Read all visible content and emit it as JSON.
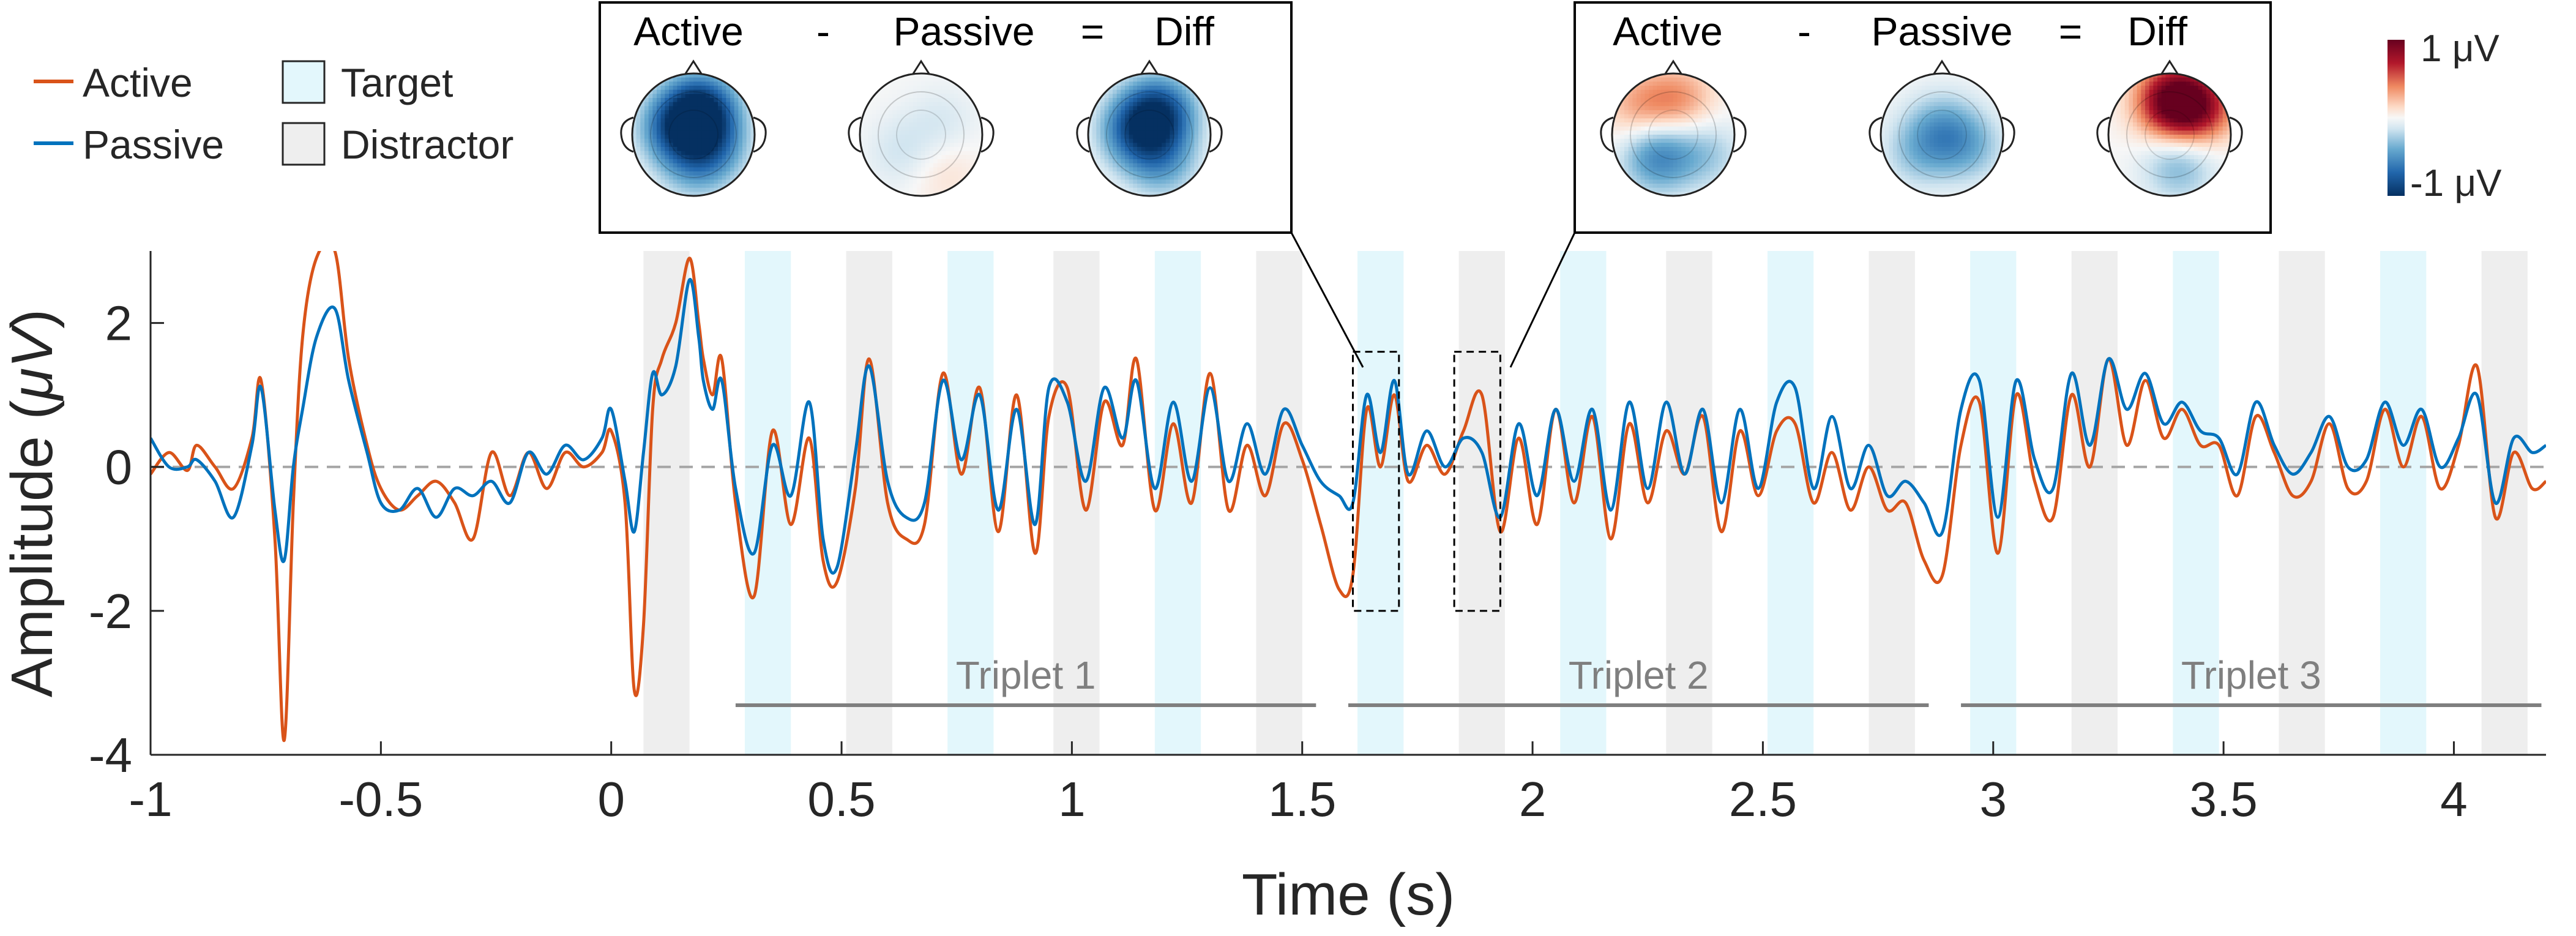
{
  "chart_data": {
    "type": "line",
    "xlabel": "Time (s)",
    "ylabel_prefix": "Amplitude (",
    "ylabel_unit": "μV",
    "ylabel_suffix": ")",
    "xlim": [
      -1,
      4.2
    ],
    "ylim": [
      -4,
      3
    ],
    "xticks": [
      -1,
      -0.5,
      0,
      0.5,
      1,
      1.5,
      2,
      2.5,
      3,
      3.5,
      4
    ],
    "xtick_labels": [
      "-1",
      "-0.5",
      "0",
      "0.5",
      "1",
      "1.5",
      "2",
      "2.5",
      "3",
      "3.5",
      "4"
    ],
    "yticks": [
      -4,
      -2,
      0,
      2
    ],
    "ytick_labels": [
      "-4",
      "-2",
      "0",
      "2"
    ],
    "zero_line": "dashed",
    "legend": {
      "lines": [
        {
          "label": "Active",
          "color": "#D95319"
        },
        {
          "label": "Passive",
          "color": "#0072BD"
        }
      ],
      "patches": [
        {
          "label": "Target",
          "color": "#E3F7FC"
        },
        {
          "label": "Distractor",
          "color": "#EEEEEE"
        }
      ]
    },
    "stimulus_bands": [
      {
        "kind": "distractor",
        "start": 0.07,
        "end": 0.17
      },
      {
        "kind": "target",
        "start": 0.29,
        "end": 0.39
      },
      {
        "kind": "distractor",
        "start": 0.51,
        "end": 0.61
      },
      {
        "kind": "target",
        "start": 0.73,
        "end": 0.83
      },
      {
        "kind": "distractor",
        "start": 0.96,
        "end": 1.06
      },
      {
        "kind": "target",
        "start": 1.18,
        "end": 1.28
      },
      {
        "kind": "distractor",
        "start": 1.4,
        "end": 1.5
      },
      {
        "kind": "target",
        "start": 1.62,
        "end": 1.72
      },
      {
        "kind": "distractor",
        "start": 1.84,
        "end": 1.94
      },
      {
        "kind": "target",
        "start": 2.06,
        "end": 2.16
      },
      {
        "kind": "distractor",
        "start": 2.29,
        "end": 2.39
      },
      {
        "kind": "target",
        "start": 2.51,
        "end": 2.61
      },
      {
        "kind": "distractor",
        "start": 2.73,
        "end": 2.83
      },
      {
        "kind": "target",
        "start": 2.95,
        "end": 3.05
      },
      {
        "kind": "distractor",
        "start": 3.17,
        "end": 3.27
      },
      {
        "kind": "target",
        "start": 3.39,
        "end": 3.49
      },
      {
        "kind": "distractor",
        "start": 3.62,
        "end": 3.72
      },
      {
        "kind": "target",
        "start": 3.84,
        "end": 3.94
      },
      {
        "kind": "distractor",
        "start": 4.06,
        "end": 4.16
      }
    ],
    "triplets": [
      {
        "label": "Triplet 1",
        "start": 0.27,
        "end": 1.53
      },
      {
        "label": "Triplet 2",
        "start": 1.6,
        "end": 2.86
      },
      {
        "label": "Triplet 3",
        "start": 2.93,
        "end": 4.19
      }
    ],
    "highlight_windows": [
      {
        "start": 1.61,
        "end": 1.71,
        "ymin": -2,
        "ymax": 1.6
      },
      {
        "start": 1.83,
        "end": 1.93,
        "ymin": -2,
        "ymax": 1.6
      }
    ],
    "series": [
      {
        "name": "Active",
        "color": "#D95319",
        "x": [
          -1.0,
          -0.96,
          -0.92,
          -0.9,
          -0.86,
          -0.82,
          -0.78,
          -0.76,
          -0.73,
          -0.71,
          -0.69,
          -0.67,
          -0.64,
          -0.6,
          -0.57,
          -0.53,
          -0.5,
          -0.46,
          -0.42,
          -0.38,
          -0.34,
          -0.3,
          -0.26,
          -0.22,
          -0.18,
          -0.14,
          -0.1,
          -0.06,
          -0.02,
          0.0,
          0.03,
          0.05,
          0.07,
          0.09,
          0.11,
          0.14,
          0.17,
          0.19,
          0.2,
          0.22,
          0.24,
          0.27,
          0.31,
          0.35,
          0.39,
          0.43,
          0.46,
          0.49,
          0.53,
          0.56,
          0.6,
          0.64,
          0.68,
          0.72,
          0.76,
          0.8,
          0.84,
          0.88,
          0.92,
          0.95,
          0.99,
          1.03,
          1.07,
          1.11,
          1.14,
          1.18,
          1.22,
          1.26,
          1.3,
          1.34,
          1.38,
          1.42,
          1.46,
          1.5,
          1.54,
          1.58,
          1.61,
          1.64,
          1.67,
          1.7,
          1.73,
          1.77,
          1.81,
          1.85,
          1.89,
          1.93,
          1.97,
          2.01,
          2.05,
          2.09,
          2.13,
          2.17,
          2.21,
          2.25,
          2.29,
          2.33,
          2.37,
          2.41,
          2.45,
          2.49,
          2.53,
          2.57,
          2.61,
          2.65,
          2.69,
          2.73,
          2.77,
          2.81,
          2.85,
          2.89,
          2.93,
          2.97,
          3.01,
          3.05,
          3.09,
          3.13,
          3.17,
          3.21,
          3.25,
          3.29,
          3.33,
          3.37,
          3.41,
          3.45,
          3.49,
          3.53,
          3.57,
          3.61,
          3.65,
          3.69,
          3.73,
          3.77,
          3.81,
          3.85,
          3.89,
          3.93,
          3.97,
          4.01,
          4.05,
          4.09,
          4.13,
          4.17,
          4.2
        ],
        "y": [
          -0.1,
          0.2,
          -0.05,
          0.3,
          0.0,
          -0.3,
          0.4,
          1.2,
          -1.0,
          -3.8,
          -0.5,
          1.8,
          2.9,
          3.0,
          1.5,
          0.3,
          -0.3,
          -0.6,
          -0.4,
          -0.2,
          -0.5,
          -1.0,
          0.2,
          -0.4,
          0.2,
          -0.3,
          0.2,
          0.0,
          0.2,
          0.5,
          -0.5,
          -3.1,
          -2.2,
          0.8,
          1.5,
          2.0,
          2.9,
          2.0,
          1.5,
          1.0,
          1.5,
          -0.5,
          -1.8,
          0.5,
          -0.8,
          0.4,
          -1.3,
          -1.6,
          -0.3,
          1.5,
          -0.5,
          -1.0,
          -0.8,
          1.3,
          -0.1,
          1.1,
          -0.9,
          1.0,
          -1.2,
          0.7,
          1.1,
          -0.6,
          0.9,
          0.3,
          1.5,
          -0.6,
          0.6,
          -0.5,
          1.3,
          -0.6,
          0.3,
          -0.4,
          0.6,
          0.1,
          -0.8,
          -1.7,
          -1.5,
          0.8,
          0.0,
          1.0,
          -0.2,
          0.3,
          -0.1,
          0.5,
          1.0,
          -0.9,
          0.4,
          -0.8,
          0.8,
          -0.5,
          0.7,
          -1.0,
          0.6,
          -0.5,
          0.5,
          -0.1,
          0.7,
          -0.9,
          0.5,
          -0.4,
          0.5,
          0.6,
          -0.5,
          0.2,
          -0.6,
          0.0,
          -0.6,
          -0.5,
          -1.3,
          -1.5,
          0.3,
          0.9,
          -1.2,
          1.0,
          -0.2,
          -0.7,
          1.0,
          0.0,
          1.5,
          0.3,
          1.2,
          0.4,
          0.8,
          0.3,
          0.3,
          -0.4,
          0.7,
          0.2,
          -0.4,
          -0.2,
          0.6,
          -0.3,
          -0.2,
          0.8,
          0.0,
          0.7,
          -0.3,
          0.3,
          1.4,
          -0.7,
          0.2,
          -0.3,
          -0.2
        ]
      },
      {
        "name": "Passive",
        "color": "#0072BD",
        "x": [
          -1.0,
          -0.96,
          -0.92,
          -0.9,
          -0.86,
          -0.82,
          -0.78,
          -0.76,
          -0.73,
          -0.71,
          -0.69,
          -0.67,
          -0.64,
          -0.6,
          -0.57,
          -0.53,
          -0.5,
          -0.46,
          -0.42,
          -0.38,
          -0.34,
          -0.3,
          -0.26,
          -0.22,
          -0.18,
          -0.14,
          -0.1,
          -0.06,
          -0.02,
          0.0,
          0.03,
          0.05,
          0.07,
          0.09,
          0.11,
          0.14,
          0.17,
          0.19,
          0.2,
          0.22,
          0.24,
          0.27,
          0.31,
          0.35,
          0.39,
          0.43,
          0.46,
          0.49,
          0.53,
          0.56,
          0.6,
          0.64,
          0.68,
          0.72,
          0.76,
          0.8,
          0.84,
          0.88,
          0.92,
          0.95,
          0.99,
          1.03,
          1.07,
          1.11,
          1.14,
          1.18,
          1.22,
          1.26,
          1.3,
          1.34,
          1.38,
          1.42,
          1.46,
          1.5,
          1.54,
          1.58,
          1.61,
          1.64,
          1.67,
          1.7,
          1.73,
          1.77,
          1.81,
          1.85,
          1.89,
          1.93,
          1.97,
          2.01,
          2.05,
          2.09,
          2.13,
          2.17,
          2.21,
          2.25,
          2.29,
          2.33,
          2.37,
          2.41,
          2.45,
          2.49,
          2.53,
          2.57,
          2.61,
          2.65,
          2.69,
          2.73,
          2.77,
          2.81,
          2.85,
          2.89,
          2.93,
          2.97,
          3.01,
          3.05,
          3.09,
          3.13,
          3.17,
          3.21,
          3.25,
          3.29,
          3.33,
          3.37,
          3.41,
          3.45,
          3.49,
          3.53,
          3.57,
          3.61,
          3.65,
          3.69,
          3.73,
          3.77,
          3.81,
          3.85,
          3.89,
          3.93,
          3.97,
          4.01,
          4.05,
          4.09,
          4.13,
          4.17,
          4.2
        ],
        "y": [
          0.4,
          0.0,
          0.0,
          0.1,
          -0.2,
          -0.7,
          0.3,
          1.1,
          -0.6,
          -1.3,
          0.0,
          0.8,
          1.8,
          2.2,
          1.2,
          0.2,
          -0.5,
          -0.6,
          -0.3,
          -0.7,
          -0.3,
          -0.4,
          -0.2,
          -0.5,
          0.2,
          -0.1,
          0.3,
          0.1,
          0.4,
          0.8,
          -0.2,
          -0.9,
          0.2,
          1.3,
          1.0,
          1.4,
          2.6,
          1.8,
          1.2,
          0.8,
          1.2,
          -0.3,
          -1.2,
          0.3,
          -0.4,
          0.9,
          -1.0,
          -1.4,
          0.2,
          1.4,
          -0.2,
          -0.7,
          -0.5,
          1.2,
          0.1,
          1.0,
          -0.6,
          0.8,
          -0.8,
          1.1,
          0.9,
          -0.2,
          1.1,
          0.4,
          1.2,
          -0.3,
          0.9,
          -0.2,
          1.1,
          -0.2,
          0.6,
          -0.1,
          0.8,
          0.3,
          -0.2,
          -0.4,
          -0.5,
          1.0,
          0.2,
          1.2,
          -0.1,
          0.5,
          0.0,
          0.4,
          0.2,
          -0.7,
          0.6,
          -0.4,
          0.8,
          -0.2,
          0.8,
          -0.6,
          0.9,
          -0.3,
          0.9,
          -0.1,
          0.8,
          -0.5,
          0.8,
          -0.3,
          0.9,
          1.1,
          -0.3,
          0.7,
          -0.3,
          0.3,
          -0.4,
          -0.2,
          -0.5,
          -0.9,
          0.8,
          1.2,
          -0.7,
          1.2,
          0.1,
          -0.3,
          1.3,
          0.3,
          1.5,
          0.8,
          1.3,
          0.6,
          0.9,
          0.5,
          0.4,
          -0.1,
          0.9,
          0.3,
          -0.1,
          0.2,
          0.7,
          0.0,
          0.1,
          0.9,
          0.3,
          0.8,
          0.0,
          0.4,
          1.0,
          -0.5,
          0.4,
          0.2,
          0.3
        ]
      }
    ],
    "colorbar": {
      "max_label": "1 μV",
      "min_label": "-1 μV",
      "colormap": "RdBu"
    },
    "topo_panels": [
      {
        "titles": [
          "Active",
          "-",
          "Passive",
          "=",
          "Diff"
        ],
        "maps": [
          {
            "name": "Active",
            "blobs": [
              {
                "x": 0.12,
                "y": -0.4,
                "v": -0.95
              },
              {
                "x": -0.3,
                "y": -0.1,
                "v": -0.6
              },
              {
                "x": 0.3,
                "y": 0.2,
                "v": -0.45
              },
              {
                "x": 0.0,
                "y": 0.55,
                "v": -0.25
              }
            ]
          },
          {
            "name": "Passive",
            "blobs": [
              {
                "x": -0.3,
                "y": 0.3,
                "v": -0.15
              },
              {
                "x": 0.35,
                "y": -0.2,
                "v": -0.12
              },
              {
                "x": 0.35,
                "y": 0.6,
                "v": 0.12
              }
            ]
          },
          {
            "name": "Diff",
            "blobs": [
              {
                "x": 0.15,
                "y": -0.35,
                "v": -0.85
              },
              {
                "x": -0.25,
                "y": -0.05,
                "v": -0.55
              },
              {
                "x": 0.2,
                "y": 0.45,
                "v": -0.4
              }
            ]
          }
        ]
      },
      {
        "titles": [
          "Active",
          "-",
          "Passive",
          "=",
          "Diff"
        ],
        "maps": [
          {
            "name": "Active",
            "blobs": [
              {
                "x": 0.1,
                "y": -0.55,
                "v": 0.35
              },
              {
                "x": -0.55,
                "y": -0.45,
                "v": 0.3
              },
              {
                "x": -0.25,
                "y": 0.35,
                "v": -0.55
              },
              {
                "x": 0.55,
                "y": 0.3,
                "v": -0.25
              }
            ]
          },
          {
            "name": "Passive",
            "blobs": [
              {
                "x": 0.0,
                "y": -0.1,
                "v": -0.35
              },
              {
                "x": -0.4,
                "y": 0.3,
                "v": -0.25
              },
              {
                "x": 0.45,
                "y": 0.2,
                "v": -0.3
              }
            ]
          },
          {
            "name": "Diff",
            "blobs": [
              {
                "x": 0.05,
                "y": -0.55,
                "v": 0.95
              },
              {
                "x": 0.5,
                "y": -0.45,
                "v": 0.6
              },
              {
                "x": -0.4,
                "y": 0.05,
                "v": 0.0
              },
              {
                "x": 0.15,
                "y": 0.5,
                "v": -0.35
              }
            ]
          }
        ]
      }
    ]
  }
}
